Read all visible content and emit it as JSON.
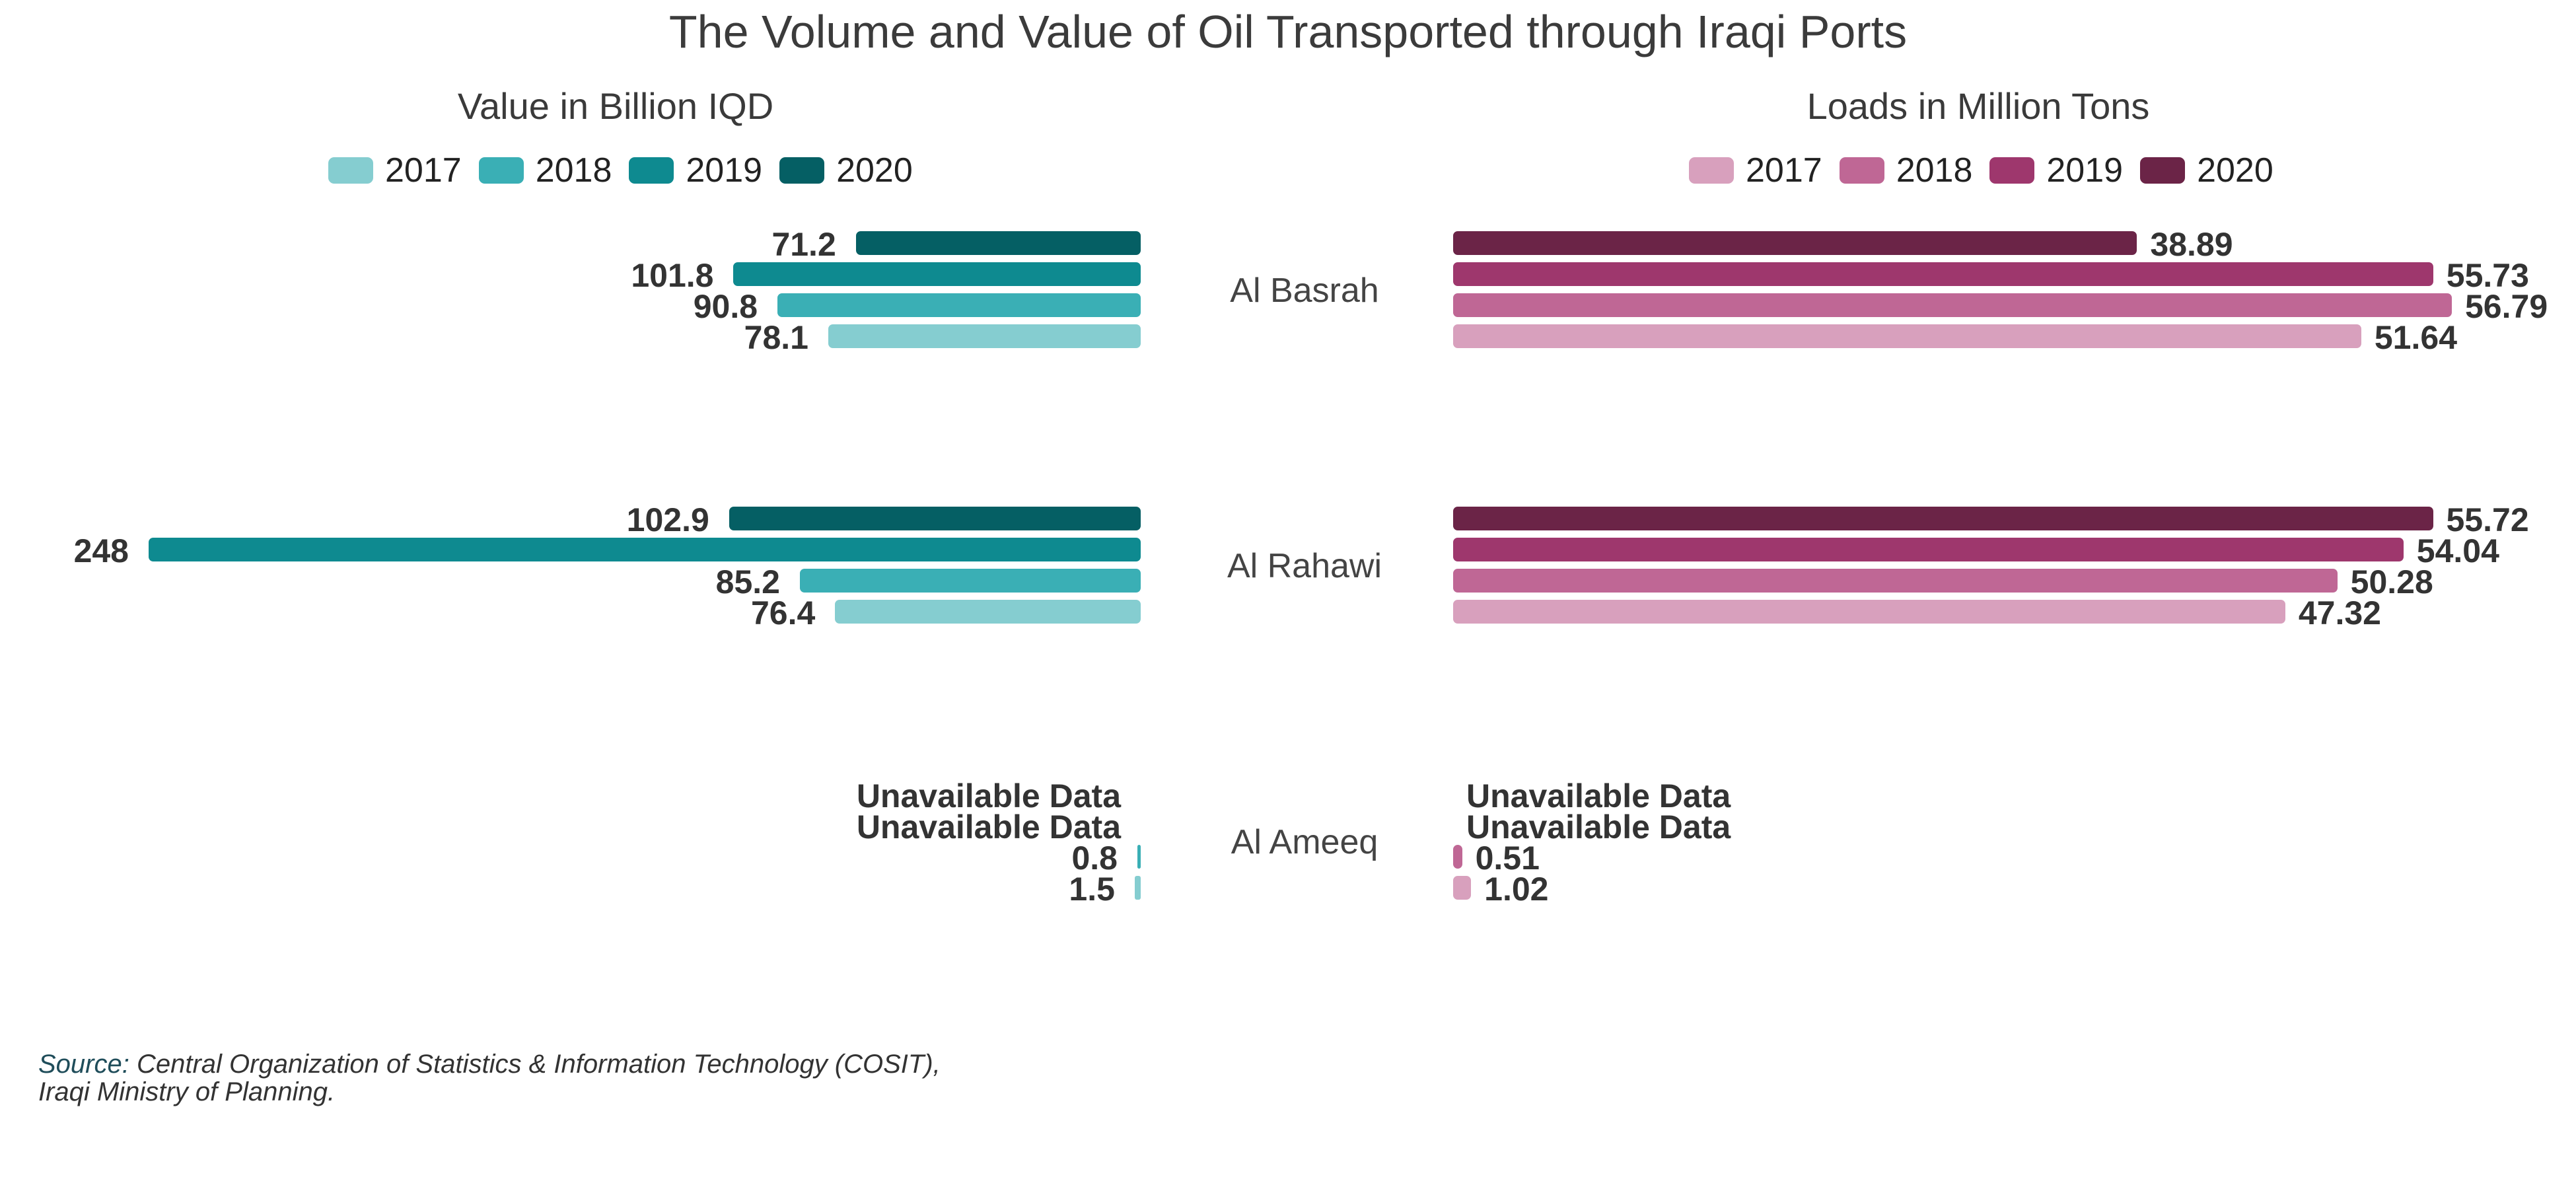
{
  "title": "The Volume and Value of Oil Transported through Iraqi Ports",
  "source": {
    "label": "Source:",
    "line1": " Central Organization of Statistics & Information Technology (COSIT),",
    "line2": "Iraqi Ministry of Planning."
  },
  "chart_data": [
    {
      "type": "bar",
      "orientation": "horizontal",
      "direction": "right-to-left",
      "title": "Value in Billion IQD",
      "categories": [
        "Al Basrah",
        "Al Rahawi",
        "Al Ameeq"
      ],
      "series": [
        {
          "name": "2017",
          "color": "#85cdd0",
          "values": [
            78.1,
            76.4,
            1.5
          ],
          "labels": [
            "78.1",
            "76.4",
            "1.5"
          ]
        },
        {
          "name": "2018",
          "color": "#3aafb5",
          "values": [
            90.8,
            85.2,
            0.8
          ],
          "labels": [
            "90.8",
            "85.2",
            "0.8"
          ]
        },
        {
          "name": "2019",
          "color": "#0e8a90",
          "values": [
            101.8,
            248,
            null
          ],
          "labels": [
            "101.8",
            "248",
            "Unavailable Data"
          ]
        },
        {
          "name": "2020",
          "color": "#055f64",
          "values": [
            71.2,
            102.9,
            null
          ],
          "labels": [
            "71.2",
            "102.9",
            "Unavailable Data"
          ]
        }
      ],
      "xlim": [
        0,
        248
      ],
      "grid": false,
      "legend": "top"
    },
    {
      "type": "bar",
      "orientation": "horizontal",
      "direction": "left-to-right",
      "title": "Loads in Million Tons",
      "categories": [
        "Al Basrah",
        "Al Rahawi",
        "Al Ameeq"
      ],
      "series": [
        {
          "name": "2017",
          "color": "#d8a0bd",
          "values": [
            51.64,
            47.32,
            1.02
          ],
          "labels": [
            "51.64",
            "47.32",
            "1.02"
          ]
        },
        {
          "name": "2018",
          "color": "#bf6795",
          "values": [
            56.79,
            50.28,
            0.51
          ],
          "labels": [
            "56.79",
            "50.28",
            "0.51"
          ]
        },
        {
          "name": "2019",
          "color": "#9e376d",
          "values": [
            55.73,
            54.04,
            null
          ],
          "labels": [
            "55.73",
            "54.04",
            "Unavailable Data"
          ]
        },
        {
          "name": "2020",
          "color": "#6b2447",
          "values": [
            38.89,
            55.72,
            null
          ],
          "labels": [
            "38.89",
            "55.72",
            "Unavailable Data"
          ]
        }
      ],
      "xlim": [
        0,
        56.79
      ],
      "grid": false,
      "legend": "top"
    }
  ]
}
